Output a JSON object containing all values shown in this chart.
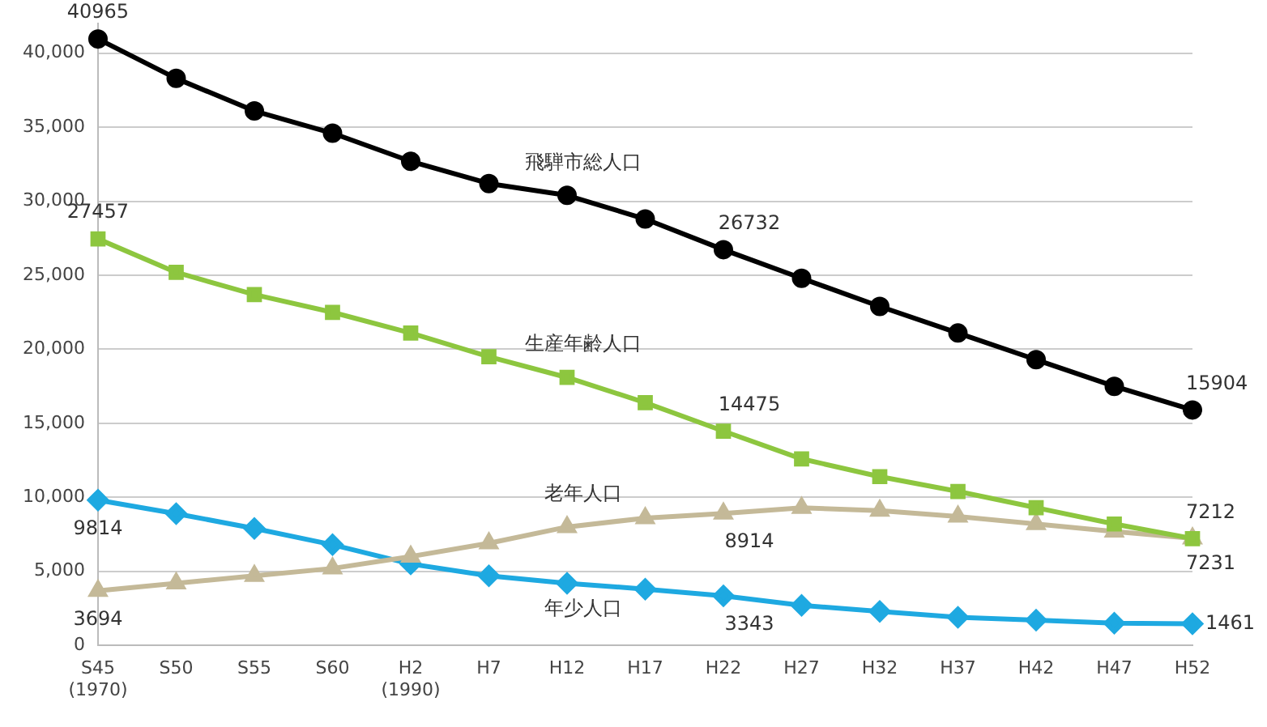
{
  "chart_data": {
    "type": "line",
    "categories": [
      "S45\n(1970)",
      "S50",
      "S55",
      "S60",
      "H2\n(1990)",
      "H7",
      "H12",
      "H17",
      "H22",
      "H27",
      "H32",
      "H37",
      "H42",
      "H47",
      "H52"
    ],
    "series": [
      {
        "name": "飛騨市総人口",
        "color": "#000000",
        "marker": "circle",
        "values": [
          40965,
          38300,
          36100,
          34600,
          32700,
          31200,
          30400,
          28800,
          26732,
          24800,
          22900,
          21100,
          19300,
          17500,
          15904
        ],
        "value_labels": [
          "40965",
          null,
          null,
          null,
          null,
          null,
          null,
          null,
          "26732",
          null,
          null,
          null,
          null,
          null,
          "15904"
        ]
      },
      {
        "name": "生産年齢人口",
        "color": "#8dc63f",
        "marker": "square",
        "values": [
          27457,
          25200,
          23700,
          22500,
          21100,
          19500,
          18100,
          16400,
          14475,
          12600,
          11400,
          10400,
          9300,
          8200,
          7212
        ],
        "value_labels": [
          "27457",
          null,
          null,
          null,
          null,
          null,
          null,
          null,
          "14475",
          null,
          null,
          null,
          null,
          null,
          "7212"
        ]
      },
      {
        "name": "老年人口",
        "color": "#c4b998",
        "marker": "triangle",
        "values": [
          3694,
          4200,
          4700,
          5200,
          6000,
          6900,
          8000,
          8600,
          8914,
          9300,
          9100,
          8700,
          8200,
          7700,
          7231
        ],
        "value_labels": [
          "3694",
          null,
          null,
          null,
          null,
          null,
          null,
          null,
          "8914",
          null,
          null,
          null,
          null,
          null,
          "7231"
        ]
      },
      {
        "name": "年少人口",
        "color": "#1ea9e1",
        "marker": "diamond",
        "values": [
          9814,
          8900,
          7900,
          6800,
          5500,
          4700,
          4200,
          3800,
          3343,
          2700,
          2300,
          1900,
          1700,
          1500,
          1461
        ],
        "value_labels": [
          "9814",
          null,
          null,
          null,
          null,
          null,
          null,
          null,
          "3343",
          null,
          null,
          null,
          null,
          null,
          "1461"
        ]
      }
    ],
    "ylim": [
      0,
      42000
    ],
    "yticks": [
      {
        "value": 0,
        "label": "0"
      },
      {
        "value": 5000,
        "label": "5,000"
      },
      {
        "value": 10000,
        "label": "10,000"
      },
      {
        "value": 15000,
        "label": "15,000"
      },
      {
        "value": 20000,
        "label": "20,000"
      },
      {
        "value": 25000,
        "label": "25,000"
      },
      {
        "value": 30000,
        "label": "30,000"
      },
      {
        "value": 35000,
        "label": "35,000"
      },
      {
        "value": 40000,
        "label": "40,000"
      }
    ],
    "grid": "y",
    "legend": false
  }
}
